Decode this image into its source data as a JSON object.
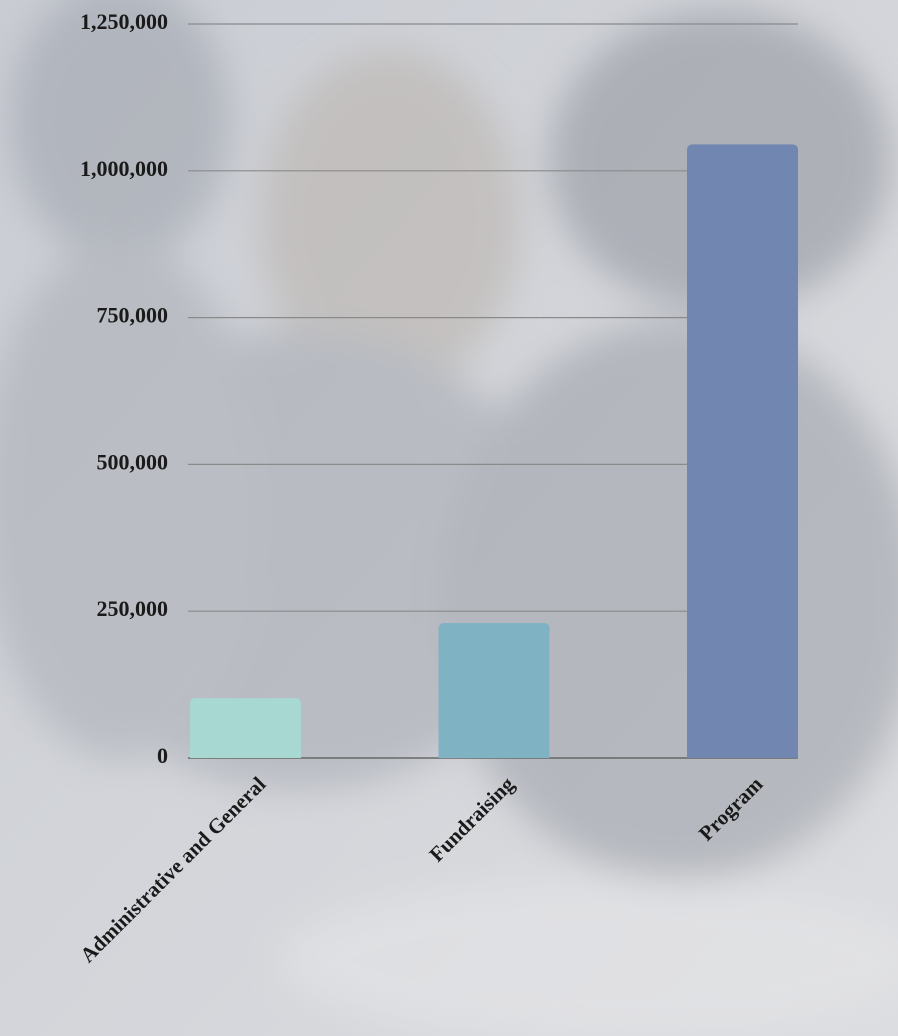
{
  "chart_data": {
    "type": "bar",
    "categories": [
      "Administrative and General",
      "Fundraising",
      "Program"
    ],
    "values": [
      102000,
      230000,
      1045000
    ],
    "colors": [
      "#a8d8d2",
      "#7fb3c4",
      "#7186b0"
    ],
    "ylim": [
      0,
      1250000
    ],
    "yticks": [
      0,
      {
        "value": 250000,
        "label": "250,000"
      },
      {
        "value": 500000,
        "label": "500,000"
      },
      {
        "value": 750000,
        "label": "750,000"
      },
      {
        "value": 1000000,
        "label": "1,000,000"
      },
      {
        "value": 1250000,
        "label": "1,250,000"
      }
    ],
    "grid": true
  }
}
